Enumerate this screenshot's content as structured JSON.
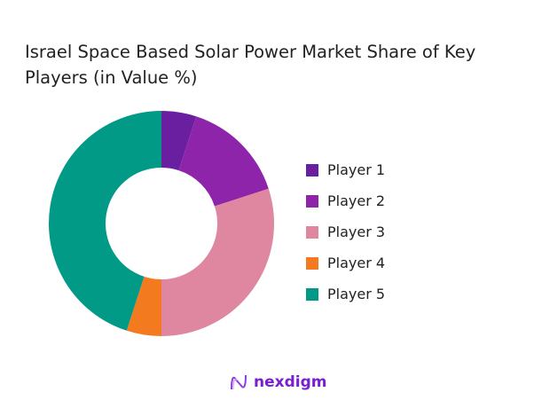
{
  "chart_data": {
    "type": "pie",
    "variant": "donut",
    "title": "Israel Space Based Solar Power Market Share of Key Players (in Value %)",
    "categories": [
      "Player 1",
      "Player 2",
      "Player 3",
      "Player 4",
      "Player 5"
    ],
    "values": [
      5,
      15,
      30,
      5,
      45
    ],
    "colors": [
      "#6a1fa0",
      "#8e24aa",
      "#df87a0",
      "#f47a20",
      "#009a86"
    ],
    "legend_position": "right"
  },
  "brand": {
    "name": "nexdigm"
  }
}
